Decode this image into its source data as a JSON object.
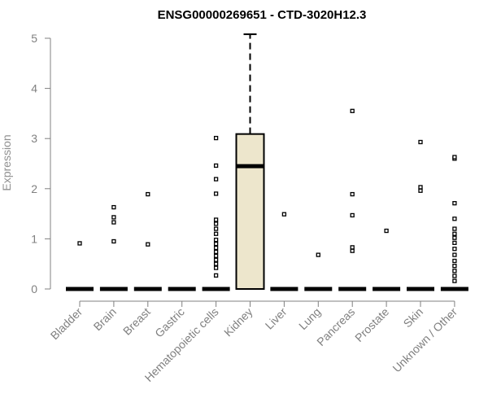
{
  "chart_data": {
    "type": "boxplot",
    "title": "ENSG00000269651 - CTD-3020H12.3",
    "xlabel": "",
    "ylabel": "Expression",
    "ylim": [
      0,
      5
    ],
    "yticks": [
      0,
      1,
      2,
      3,
      4,
      5
    ],
    "grid": false,
    "colors": {
      "box_fill": "#ede6cc",
      "axis": "#808080",
      "marks": "#000000"
    },
    "categories": [
      "Bladder",
      "Brain",
      "Breast",
      "Gastric",
      "Hematopoietic cells",
      "Kidney",
      "Liver",
      "Lung",
      "Pancreas",
      "Prostate",
      "Skin",
      "Unknown / Other"
    ],
    "boxes": [
      {
        "category": "Bladder",
        "q1": 0,
        "median": 0,
        "q3": 0,
        "whisker_low": 0,
        "whisker_high": 0,
        "outliers": [
          0.91
        ]
      },
      {
        "category": "Brain",
        "q1": 0,
        "median": 0,
        "q3": 0,
        "whisker_low": 0,
        "whisker_high": 0,
        "outliers": [
          0.95,
          1.33,
          1.43,
          1.63
        ]
      },
      {
        "category": "Breast",
        "q1": 0,
        "median": 0,
        "q3": 0,
        "whisker_low": 0,
        "whisker_high": 0,
        "outliers": [
          0.89,
          1.89
        ]
      },
      {
        "category": "Gastric",
        "q1": 0,
        "median": 0,
        "q3": 0,
        "whisker_low": 0,
        "whisker_high": 0,
        "outliers": []
      },
      {
        "category": "Hematopoietic cells",
        "q1": 0,
        "median": 0,
        "q3": 0,
        "whisker_low": 0,
        "whisker_high": 0,
        "outliers": [
          0.27,
          0.42,
          0.5,
          0.58,
          0.66,
          0.74,
          0.82,
          0.9,
          0.98,
          1.1,
          1.2,
          1.3,
          1.38,
          1.9,
          2.19,
          2.46,
          3.01
        ]
      },
      {
        "category": "Kidney",
        "q1": 0,
        "median": 2.45,
        "q3": 3.09,
        "whisker_low": 0,
        "whisker_high": 5.08,
        "outliers": []
      },
      {
        "category": "Liver",
        "q1": 0,
        "median": 0,
        "q3": 0,
        "whisker_low": 0,
        "whisker_high": 0,
        "outliers": [
          1.49
        ]
      },
      {
        "category": "Lung",
        "q1": 0,
        "median": 0,
        "q3": 0,
        "whisker_low": 0,
        "whisker_high": 0,
        "outliers": [
          0.68
        ]
      },
      {
        "category": "Pancreas",
        "q1": 0,
        "median": 0,
        "q3": 0,
        "whisker_low": 0,
        "whisker_high": 0,
        "outliers": [
          0.76,
          0.83,
          1.47,
          1.89,
          3.55
        ]
      },
      {
        "category": "Prostate",
        "q1": 0,
        "median": 0,
        "q3": 0,
        "whisker_low": 0,
        "whisker_high": 0,
        "outliers": [
          1.16
        ]
      },
      {
        "category": "Skin",
        "q1": 0,
        "median": 0,
        "q3": 0,
        "whisker_low": 0,
        "whisker_high": 0,
        "outliers": [
          1.96,
          2.03,
          2.93
        ]
      },
      {
        "category": "Unknown / Other",
        "q1": 0,
        "median": 0,
        "q3": 0,
        "whisker_low": 0,
        "whisker_high": 0,
        "outliers": [
          0.16,
          0.26,
          0.36,
          0.46,
          0.56,
          0.68,
          0.8,
          0.92,
          1.02,
          1.1,
          1.2,
          1.4,
          1.71,
          2.6,
          2.63
        ]
      }
    ]
  }
}
